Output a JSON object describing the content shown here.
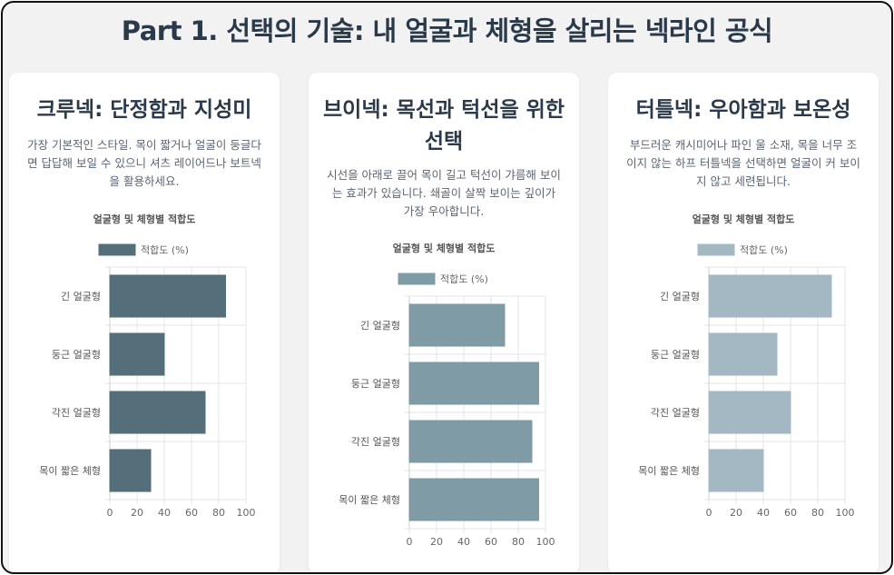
{
  "page_title": "Part 1. 선택의 기술: 내 얼굴과 체형을 살리는 넥라인 공식",
  "cards": [
    {
      "heading": "크루넥: 단정함과 지성미",
      "description": "가장 기본적인 스타일. 목이 짧거나 얼굴이 둥글다면 답답해 보일 수 있으니 셔츠 레이어드나 보트넥을 활용하세요."
    },
    {
      "heading": "브이넥: 목선과 턱선을 위한 선택",
      "description": "시선을 아래로 끌어 목이 길고 턱선이 갸름해 보이는 효과가 있습니다. 쇄골이 살짝 보이는 깊이가 가장 우아합니다."
    },
    {
      "heading": "터틀넥: 우아함과 보온성",
      "description": "부드러운 캐시미어나 파인 울 소재, 목을 너무 조이지 않는 하프 터틀넥을 선택하면 얼굴이 커 보이지 않고 세련됩니다."
    }
  ],
  "chart_data": [
    {
      "type": "bar",
      "orientation": "horizontal",
      "title": "얼굴형 및 체형별 적합도",
      "categories": [
        "긴 얼굴형",
        "둥근 얼굴형",
        "각진 얼굴형",
        "목이 짧은 체형"
      ],
      "series": [
        {
          "name": "적합도 (%)",
          "values": [
            85,
            40,
            70,
            30
          ]
        }
      ],
      "xlim": [
        0,
        100
      ],
      "xticks": [
        "0",
        "20",
        "40",
        "60",
        "80",
        "100"
      ],
      "color": "#546e7a",
      "grid": true,
      "legend": "top"
    },
    {
      "type": "bar",
      "orientation": "horizontal",
      "title": "얼굴형 및 체형별 적합도",
      "categories": [
        "긴 얼굴형",
        "둥근 얼굴형",
        "각진 얼굴형",
        "목이 짧은 체형"
      ],
      "series": [
        {
          "name": "적합도 (%)",
          "values": [
            70,
            95,
            90,
            95
          ]
        }
      ],
      "xlim": [
        0,
        100
      ],
      "xticks": [
        "0",
        "20",
        "40",
        "60",
        "80",
        "100"
      ],
      "color": "#7f9ba6",
      "grid": true,
      "legend": "top"
    },
    {
      "type": "bar",
      "orientation": "horizontal",
      "title": "얼굴형 및 체형별 적합도",
      "categories": [
        "긴 얼굴형",
        "둥근 얼굴형",
        "각진 얼굴형",
        "목이 짧은 체형"
      ],
      "series": [
        {
          "name": "적합도 (%)",
          "values": [
            90,
            50,
            60,
            40
          ]
        }
      ],
      "xlim": [
        0,
        100
      ],
      "xticks": [
        "0",
        "20",
        "40",
        "60",
        "80",
        "100"
      ],
      "color": "#a3b8c2",
      "grid": true,
      "legend": "top"
    }
  ]
}
